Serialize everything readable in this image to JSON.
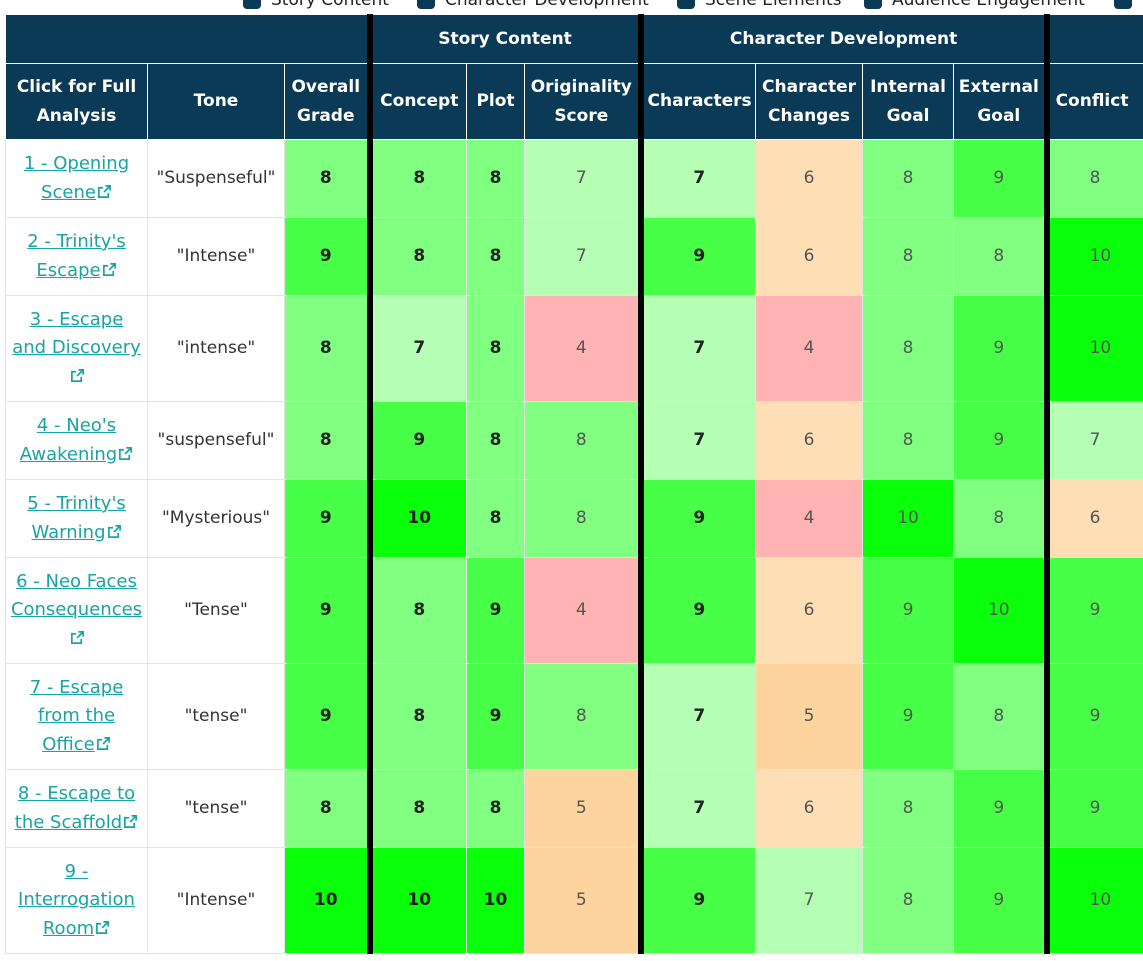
{
  "filters": [
    {
      "label": "Story Content",
      "checked": true
    },
    {
      "label": "Character Development",
      "checked": true
    },
    {
      "label": "Scene Elements",
      "checked": true
    },
    {
      "label": "Audience Engagement",
      "checked": true
    },
    {
      "label": "",
      "checked": true
    }
  ],
  "groups": {
    "story_content": "Story Content",
    "character_development": "Character Development"
  },
  "columns": {
    "scene": "Click for Full Analysis",
    "tone": "Tone",
    "overall": "Overall Grade",
    "concept": "Concept",
    "plot": "Plot",
    "originality": "Originality Score",
    "characters": "Characters",
    "changes": "Character Changes",
    "internal": "Internal Goal",
    "external": "External Goal",
    "conflict": "Conflict"
  },
  "rows": [
    {
      "scene": "1 - Opening Scene",
      "tone": "\"Suspenseful\"",
      "overall": 8,
      "concept": 8,
      "plot": 8,
      "originality": 7,
      "characters": 7,
      "changes": 6,
      "internal": 8,
      "external": 9,
      "conflict": 8
    },
    {
      "scene": "2 - Trinity's Escape",
      "tone": "\"Intense\"",
      "overall": 9,
      "concept": 8,
      "plot": 8,
      "originality": 7,
      "characters": 9,
      "changes": 6,
      "internal": 8,
      "external": 8,
      "conflict": 10
    },
    {
      "scene": "3 - Escape and Discovery",
      "tone": "\"intense\"",
      "overall": 8,
      "concept": 7,
      "plot": 8,
      "originality": 4,
      "characters": 7,
      "changes": 4,
      "internal": 8,
      "external": 9,
      "conflict": 10
    },
    {
      "scene": "4 - Neo's Awakening",
      "tone": "\"suspenseful\"",
      "overall": 8,
      "concept": 9,
      "plot": 8,
      "originality": 8,
      "characters": 7,
      "changes": 6,
      "internal": 8,
      "external": 9,
      "conflict": 7
    },
    {
      "scene": "5 - Trinity's Warning",
      "tone": "\"Mysterious\"",
      "overall": 9,
      "concept": 10,
      "plot": 8,
      "originality": 8,
      "characters": 9,
      "changes": 4,
      "internal": 10,
      "external": 8,
      "conflict": 6
    },
    {
      "scene": "6 - Neo Faces Consequences",
      "tone": "\"Tense\"",
      "overall": 9,
      "concept": 8,
      "plot": 9,
      "originality": 4,
      "characters": 9,
      "changes": 6,
      "internal": 9,
      "external": 10,
      "conflict": 9
    },
    {
      "scene": "7 - Escape from the Office",
      "tone": "\"tense\"",
      "overall": 9,
      "concept": 8,
      "plot": 9,
      "originality": 8,
      "characters": 7,
      "changes": 5,
      "internal": 9,
      "external": 8,
      "conflict": 9
    },
    {
      "scene": "8 - Escape to the Scaffold",
      "tone": "\"tense\"",
      "overall": 8,
      "concept": 8,
      "plot": 8,
      "originality": 5,
      "characters": 7,
      "changes": 6,
      "internal": 8,
      "external": 9,
      "conflict": 9
    },
    {
      "scene": "9 - Interrogation Room",
      "tone": "\"Intense\"",
      "overall": 10,
      "concept": 10,
      "plot": 10,
      "originality": 5,
      "characters": 9,
      "changes": 7,
      "internal": 8,
      "external": 9,
      "conflict": 10
    }
  ],
  "colors": {
    "header_bg": "#0b3a57",
    "link": "#1aa3a3",
    "score_4": "#ffb3b3",
    "score_5": "#fed49e",
    "score_6": "#fedfb5",
    "score_7": "#b4ffb4",
    "score_8": "#80ff80",
    "score_9": "#47ff47",
    "score_10": "#0aff0a"
  },
  "icons": {
    "checkbox": "checkbox-checked-icon",
    "external_link": "external-link-icon"
  }
}
